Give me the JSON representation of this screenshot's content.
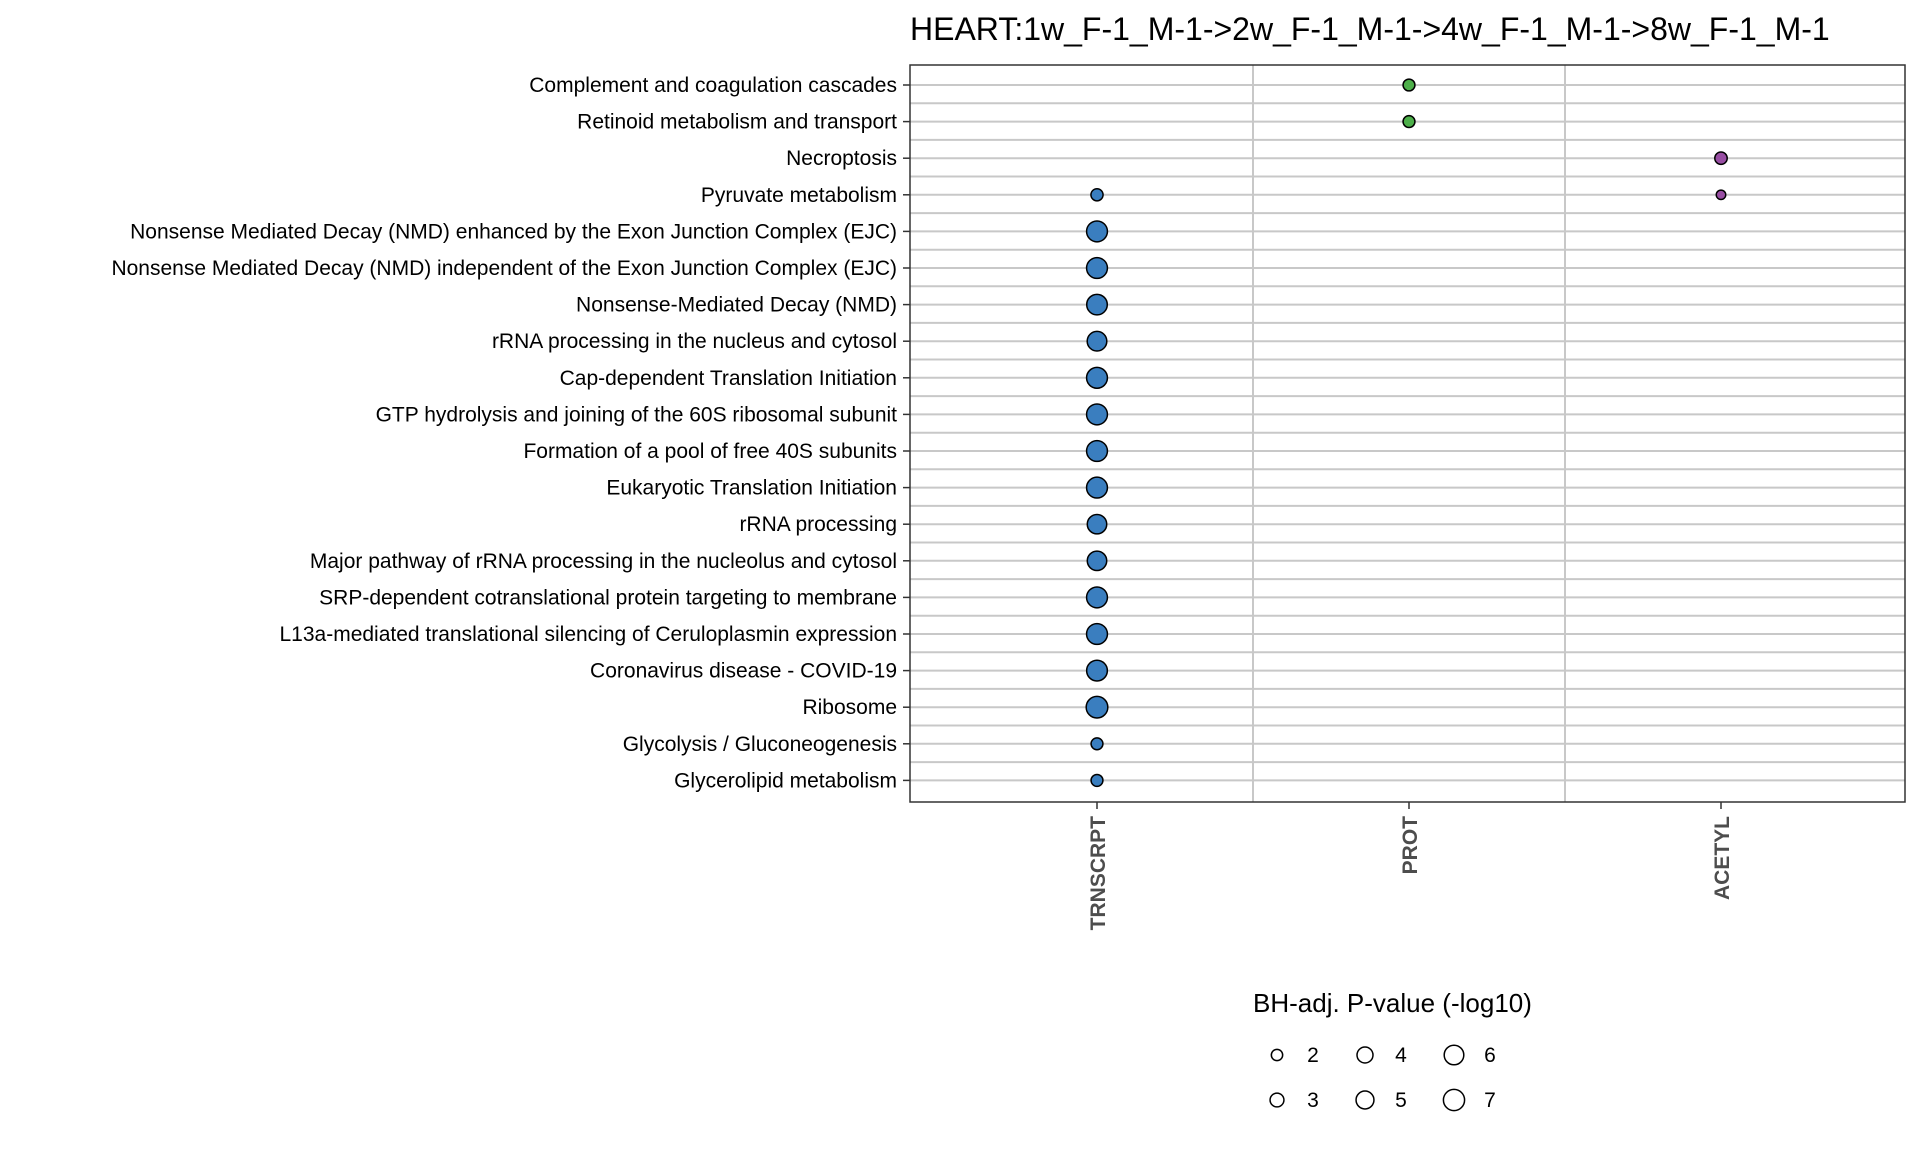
{
  "chart_data": {
    "type": "scatter",
    "title": "HEART:1w_F-1_M-1->2w_F-1_M-1->4w_F-1_M-1->8w_F-1_M-1",
    "categories_x": [
      "TRNSCRPT",
      "PROT",
      "ACETYL"
    ],
    "categories_y": [
      "Complement and coagulation cascades",
      "Retinoid metabolism and transport",
      "Necroptosis",
      "Pyruvate metabolism",
      "Nonsense Mediated Decay (NMD) enhanced by the Exon Junction Complex (EJC)",
      "Nonsense Mediated Decay (NMD) independent of the Exon Junction Complex (EJC)",
      "Nonsense-Mediated Decay (NMD)",
      "rRNA processing in the nucleus and cytosol",
      "Cap-dependent Translation Initiation",
      "GTP hydrolysis and joining of the 60S ribosomal subunit",
      "Formation of a pool of free 40S subunits",
      "Eukaryotic Translation Initiation",
      "rRNA processing",
      "Major pathway of rRNA processing in the nucleolus and cytosol",
      "SRP-dependent cotranslational protein targeting to membrane",
      "L13a-mediated translational silencing of Ceruloplasmin expression",
      "Coronavirus disease - COVID-19",
      "Ribosome",
      "Glycolysis / Gluconeogenesis",
      "Glycerolipid metabolism"
    ],
    "series": [
      {
        "x": "TRNSCRPT",
        "color": "#3a7ebf",
        "points": [
          {
            "y": "Pyruvate metabolism",
            "value": 2.3
          },
          {
            "y": "Nonsense Mediated Decay (NMD) enhanced by the Exon Junction Complex (EJC)",
            "value": 6.8
          },
          {
            "y": "Nonsense Mediated Decay (NMD) independent of the Exon Junction Complex (EJC)",
            "value": 6.8
          },
          {
            "y": "Nonsense-Mediated Decay (NMD)",
            "value": 6.6
          },
          {
            "y": "rRNA processing in the nucleus and cytosol",
            "value": 6.0
          },
          {
            "y": "Cap-dependent Translation Initiation",
            "value": 6.8
          },
          {
            "y": "GTP hydrolysis and joining of the 60S ribosomal subunit",
            "value": 6.8
          },
          {
            "y": "Formation of a pool of free 40S subunits",
            "value": 6.8
          },
          {
            "y": "Eukaryotic Translation Initiation",
            "value": 6.8
          },
          {
            "y": "rRNA processing",
            "value": 5.9
          },
          {
            "y": "Major pathway of rRNA processing in the nucleolus and cytosol",
            "value": 5.9
          },
          {
            "y": "SRP-dependent cotranslational protein targeting to membrane",
            "value": 6.8
          },
          {
            "y": "L13a-mediated translational silencing of Ceruloplasmin expression",
            "value": 6.8
          },
          {
            "y": "Coronavirus disease - COVID-19",
            "value": 6.7
          },
          {
            "y": "Ribosome",
            "value": 7.3
          },
          {
            "y": "Glycolysis / Gluconeogenesis",
            "value": 2.2
          },
          {
            "y": "Glycerolipid metabolism",
            "value": 2.2
          }
        ]
      },
      {
        "x": "PROT",
        "color": "#4daf4a",
        "points": [
          {
            "y": "Complement and coagulation cascades",
            "value": 2.2
          },
          {
            "y": "Retinoid metabolism and transport",
            "value": 2.2
          }
        ]
      },
      {
        "x": "ACETYL",
        "color": "#984ea3",
        "points": [
          {
            "y": "Necroptosis",
            "value": 2.4
          },
          {
            "y": "Pyruvate metabolism",
            "value": 1.4
          }
        ]
      }
    ],
    "size_legend": {
      "title": "BH-adj. P-value (-log10)",
      "values": [
        2,
        3,
        4,
        5,
        6,
        7
      ]
    },
    "grid": true,
    "legend_position": "bottom"
  }
}
